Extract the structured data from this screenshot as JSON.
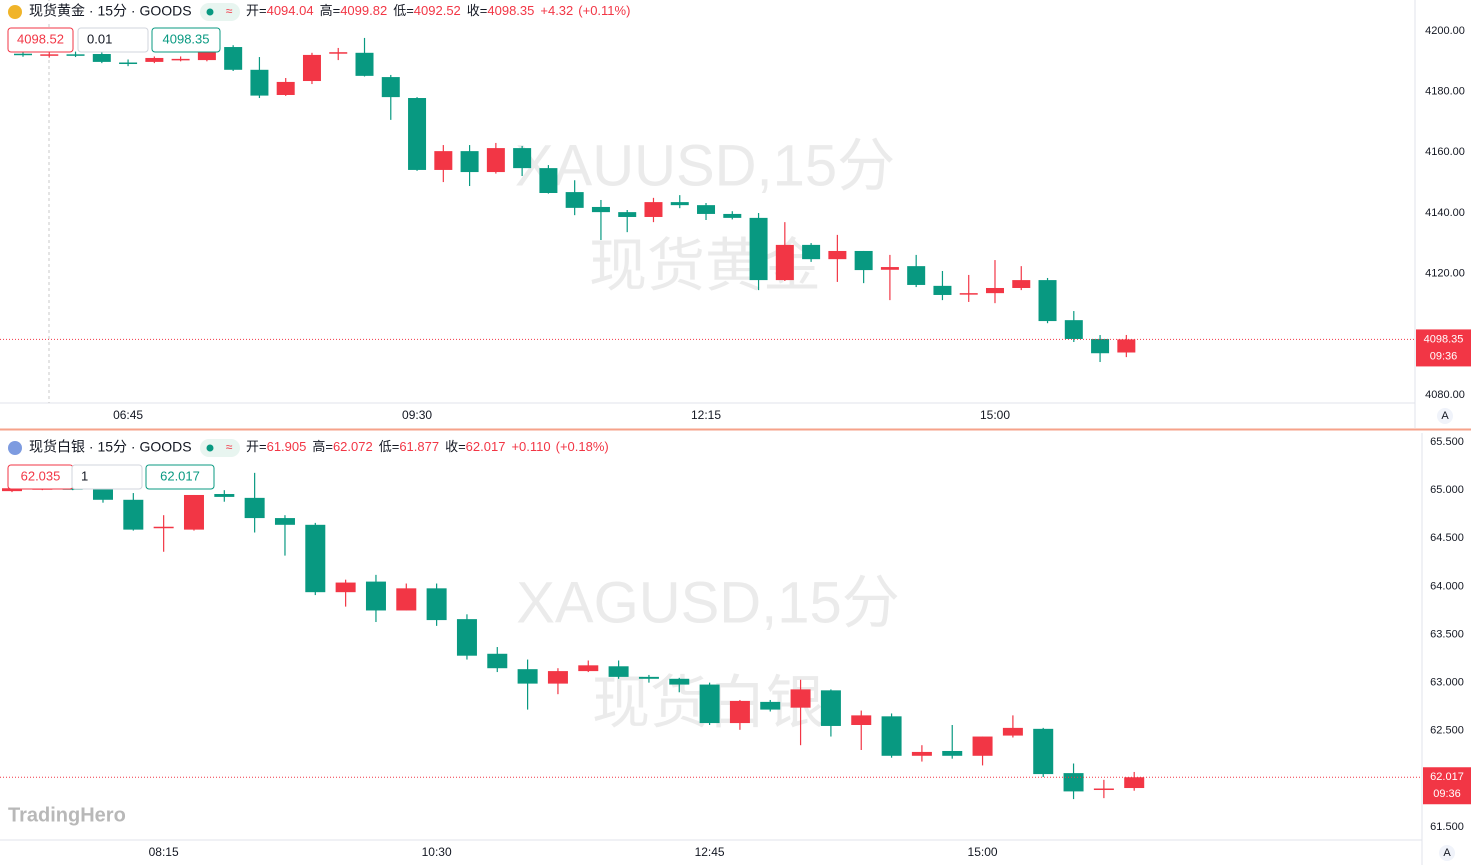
{
  "logo": "TradingHero",
  "auto_button": "A",
  "chart_data": [
    {
      "type": "candlestick",
      "symbol_line": "现货黄金 · 15分 · GOODS",
      "labels": {
        "open": "开=",
        "high": "高=",
        "low": "低=",
        "close": "收="
      },
      "change": "+4.32",
      "change_pct": "(+0.11%)",
      "bid": "4098.52",
      "spread": "0.01",
      "ask": "4098.35",
      "countdown": "09:36",
      "watermark_symbol": "XAUUSD,15分",
      "watermark_name": "现货黄金",
      "up_color": "#f23645",
      "down_color": "#089981",
      "categories": [
        null,
        null,
        null,
        null,
        "06:45",
        null,
        null,
        null,
        null,
        null,
        null,
        null,
        null,
        null,
        null,
        "09:30",
        null,
        null,
        null,
        null,
        null,
        null,
        null,
        null,
        null,
        null,
        "12:15",
        null,
        null,
        null,
        null,
        null,
        null,
        null,
        null,
        null,
        null,
        "15:00",
        null,
        null,
        null,
        null,
        null
      ],
      "open": [
        4192.5,
        4192.0,
        4192.3,
        4192.4,
        4189.6,
        4189.8,
        4190.6,
        4190.4,
        4194.7,
        4187.2,
        4178.9,
        4183.5,
        4192.5,
        4192.8,
        4184.8,
        4177.9,
        4154.2,
        4160.4,
        4153.5,
        4161.4,
        4154.8,
        4146.9,
        4142.0,
        4140.3,
        4138.7,
        4143.6,
        4142.6,
        4139.7,
        4138.4,
        4117.9,
        4129.5,
        4124.8,
        4127.5,
        4121.3,
        4122.5,
        4116.0,
        4113.3,
        4113.6,
        4115.3,
        4117.9,
        4104.7,
        4098.5,
        4094.04
      ],
      "high": [
        4193.5,
        4193.0,
        4193.2,
        4193.7,
        4190.6,
        4191.6,
        4191.6,
        4195.0,
        4195.3,
        4191.4,
        4184.5,
        4192.8,
        4194.4,
        4197.7,
        4185.5,
        4178.2,
        4162.4,
        4162.4,
        4163.1,
        4162.1,
        4155.8,
        4150.8,
        4144.3,
        4141.0,
        4145.0,
        4145.9,
        4143.3,
        4140.6,
        4140.0,
        4137.0,
        4130.1,
        4132.8,
        4127.5,
        4126.2,
        4126.2,
        4120.9,
        4119.6,
        4124.5,
        4122.5,
        4118.6,
        4107.7,
        4099.8,
        4099.82
      ],
      "low": [
        4191.5,
        4191.2,
        4191.4,
        4189.4,
        4188.4,
        4189.4,
        4190.0,
        4190.0,
        4186.8,
        4177.9,
        4178.6,
        4182.5,
        4190.4,
        4185.0,
        4170.7,
        4153.9,
        4150.2,
        4148.9,
        4153.0,
        4152.2,
        4146.4,
        4139.3,
        4131.1,
        4133.7,
        4137.0,
        4141.6,
        4137.7,
        4137.9,
        4114.6,
        4117.6,
        4123.9,
        4117.3,
        4116.9,
        4111.3,
        4115.6,
        4111.3,
        4110.7,
        4110.3,
        4114.6,
        4103.7,
        4097.5,
        4090.9,
        4092.52
      ],
      "close": [
        4192.2,
        4192.3,
        4192.2,
        4189.8,
        4189.4,
        4191.1,
        4190.8,
        4193.0,
        4187.2,
        4178.7,
        4183.2,
        4192.1,
        4193.0,
        4185.2,
        4178.2,
        4154.2,
        4160.4,
        4153.5,
        4161.4,
        4154.8,
        4146.6,
        4141.7,
        4140.3,
        4138.7,
        4143.6,
        4142.6,
        4139.7,
        4138.4,
        4117.9,
        4129.5,
        4124.8,
        4127.5,
        4121.2,
        4122.2,
        4116.3,
        4113.0,
        4113.6,
        4115.3,
        4117.9,
        4104.4,
        4098.5,
        4093.8,
        4098.35
      ],
      "ylim": [
        4077.4,
        4210.2
      ],
      "yticks": [
        {
          "value": 4080,
          "label": "4080.00"
        },
        {
          "value": 4100,
          "label": "4100.00"
        },
        {
          "value": 4120,
          "label": "4120.00"
        },
        {
          "value": 4140,
          "label": "4140.00"
        },
        {
          "value": 4160,
          "label": "4160.00"
        },
        {
          "value": 4180,
          "label": "4180.00"
        },
        {
          "value": 4200,
          "label": "4200.00"
        }
      ]
    },
    {
      "type": "candlestick",
      "symbol_line": "现货白银 · 15分 · GOODS",
      "labels": {
        "open": "开=",
        "high": "高=",
        "low": "低=",
        "close": "收="
      },
      "change": "+0.110",
      "change_pct": "(+0.18%)",
      "bid": "62.035",
      "spread": "1",
      "ask": "62.017",
      "countdown": "09:36",
      "watermark_symbol": "XAGUSD,15分",
      "watermark_name": "现货白银",
      "up_color": "#f23645",
      "down_color": "#089981",
      "categories": [
        null,
        null,
        null,
        null,
        null,
        "08:15",
        null,
        null,
        null,
        null,
        null,
        null,
        null,
        null,
        "10:30",
        null,
        null,
        null,
        null,
        null,
        null,
        null,
        null,
        "12:45",
        null,
        null,
        null,
        null,
        null,
        null,
        null,
        null,
        "15:00",
        null,
        null,
        null,
        null,
        null
      ],
      "open": [
        64.99,
        65.01,
        65.02,
        65.01,
        64.9,
        64.61,
        64.59,
        64.96,
        64.92,
        64.71,
        64.64,
        63.94,
        64.05,
        63.75,
        63.98,
        63.66,
        63.3,
        63.14,
        62.99,
        63.12,
        63.17,
        63.06,
        63.04,
        62.98,
        62.58,
        62.8,
        62.74,
        62.92,
        62.56,
        62.65,
        62.24,
        62.29,
        62.24,
        62.45,
        62.52,
        62.06,
        61.89,
        61.905
      ],
      "high": [
        65.03,
        65.04,
        65.03,
        65.13,
        64.97,
        64.74,
        64.95,
        65.0,
        65.18,
        64.74,
        64.66,
        64.07,
        64.12,
        64.03,
        64.03,
        63.71,
        63.37,
        63.24,
        63.15,
        63.23,
        63.23,
        63.08,
        63.05,
        63.0,
        62.82,
        62.82,
        63.03,
        62.93,
        62.71,
        62.68,
        62.35,
        62.56,
        62.44,
        62.66,
        62.53,
        62.16,
        61.99,
        62.072
      ],
      "low": [
        64.98,
        65.0,
        65.0,
        64.87,
        64.58,
        64.36,
        64.58,
        64.88,
        64.56,
        64.32,
        63.91,
        63.79,
        63.63,
        63.75,
        63.59,
        63.24,
        63.11,
        62.72,
        62.88,
        63.11,
        63.04,
        63.0,
        62.9,
        62.56,
        62.51,
        62.7,
        62.35,
        62.44,
        62.3,
        62.22,
        62.18,
        62.21,
        62.14,
        62.43,
        62.02,
        61.79,
        61.8,
        61.877
      ],
      "close": [
        65.02,
        65.02,
        65.01,
        64.9,
        64.59,
        64.62,
        64.95,
        64.93,
        64.71,
        64.64,
        63.94,
        64.04,
        63.75,
        63.98,
        63.65,
        63.28,
        63.15,
        62.99,
        63.12,
        63.18,
        63.06,
        63.04,
        62.98,
        62.58,
        62.81,
        62.72,
        62.93,
        62.55,
        62.66,
        62.24,
        62.28,
        62.24,
        62.44,
        62.53,
        62.05,
        61.87,
        61.9,
        62.017
      ],
      "ylim": [
        61.365,
        65.594
      ],
      "yticks": [
        {
          "value": 61.5,
          "label": "61.500"
        },
        {
          "value": 62,
          "label": "62.000"
        },
        {
          "value": 62.5,
          "label": "62.500"
        },
        {
          "value": 63,
          "label": "63.000"
        },
        {
          "value": 63.5,
          "label": "63.500"
        },
        {
          "value": 64,
          "label": "64.000"
        },
        {
          "value": 64.5,
          "label": "64.500"
        },
        {
          "value": 65,
          "label": "65.000"
        },
        {
          "value": 65.5,
          "label": "65.500"
        }
      ]
    }
  ]
}
